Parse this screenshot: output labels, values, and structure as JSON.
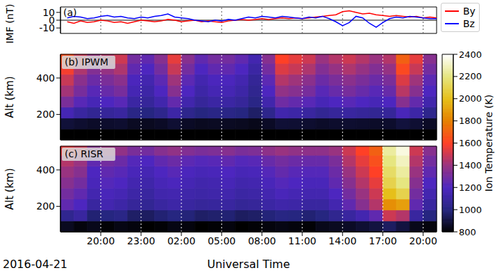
{
  "chart_data": [
    {
      "type": "line",
      "title": "(a)",
      "ylabel": "IMF (nT)",
      "x": [
        17.5,
        18,
        18.5,
        19,
        19.5,
        20,
        20.5,
        21,
        21.5,
        22,
        22.5,
        23,
        23.5,
        24,
        24.5,
        25,
        25.5,
        26,
        26.5,
        27,
        27.5,
        28,
        28.5,
        29,
        29.5,
        30,
        30.5,
        31,
        31.5,
        32,
        32.5,
        33,
        33.5,
        34,
        34.5,
        35,
        35.5,
        36,
        36.5,
        37,
        37.5,
        38,
        38.5,
        39,
        39.5,
        40,
        40.5,
        41,
        41.5,
        42,
        42.5,
        43,
        43.5,
        44,
        44.5,
        45
      ],
      "series": [
        {
          "name": "By",
          "color": "#ff0000",
          "values": [
            -2,
            -4,
            -1,
            -3,
            -2,
            0,
            -1,
            -3,
            -2,
            -4,
            -2,
            0,
            -1,
            -2,
            -1,
            1,
            0,
            -2,
            -1,
            0,
            -2,
            -1,
            -2,
            -3,
            -1,
            0,
            1,
            0,
            1,
            2,
            1,
            2,
            3,
            2,
            3,
            2,
            3,
            4,
            5,
            6,
            7,
            11,
            12,
            10,
            8,
            9,
            7,
            6,
            5,
            6,
            5,
            4,
            5,
            3,
            4,
            3
          ]
        },
        {
          "name": "Bz",
          "color": "#0000ff",
          "values": [
            3,
            5,
            4,
            2,
            3,
            5,
            6,
            4,
            5,
            3,
            2,
            4,
            3,
            5,
            6,
            8,
            4,
            3,
            2,
            0,
            -1,
            -2,
            0,
            -1,
            1,
            0,
            2,
            4,
            3,
            5,
            4,
            3,
            5,
            4,
            3,
            2,
            4,
            3,
            5,
            2,
            -2,
            -7,
            -3,
            5,
            3,
            -4,
            -9,
            -3,
            2,
            4,
            3,
            5,
            4,
            3,
            2,
            2
          ]
        }
      ],
      "xlim": [
        17,
        45
      ],
      "xticks": [
        {
          "value": 20,
          "label": "20:00"
        },
        {
          "value": 23,
          "label": "23:00"
        },
        {
          "value": 26,
          "label": "02:00"
        },
        {
          "value": 29,
          "label": "05:00"
        },
        {
          "value": 32,
          "label": "08:00"
        },
        {
          "value": 35,
          "label": "11:00"
        },
        {
          "value": 38,
          "label": "14:00"
        },
        {
          "value": 41,
          "label": "17:00"
        },
        {
          "value": 44,
          "label": "20:00"
        }
      ],
      "ylim": [
        -17,
        17
      ],
      "yticks": [
        -10,
        0,
        10
      ],
      "grid": true,
      "legend": "right",
      "tick_labels": "y",
      "reference_line": 0
    },
    {
      "type": "heatmap",
      "title": "(b) IPWM",
      "ylabel": "Alt (km)",
      "x_bins": [
        17,
        18,
        19,
        20,
        21,
        22,
        23,
        24,
        25,
        26,
        27,
        28,
        29,
        30,
        31,
        32,
        33,
        34,
        35,
        36,
        37,
        38,
        39,
        40,
        41,
        42,
        43,
        44,
        45
      ],
      "y_bins": [
        60,
        120,
        180,
        240,
        300,
        360,
        420,
        480,
        530
      ],
      "cells": [
        [
          800,
          800,
          800,
          800,
          800,
          800,
          800,
          800,
          800,
          800,
          800,
          800,
          800,
          800,
          800,
          800,
          800,
          800,
          800,
          800,
          800,
          800,
          800,
          800,
          800,
          800,
          800,
          800
        ],
        [
          890,
          875,
          865,
          870,
          875,
          855,
          850,
          860,
          880,
          860,
          850,
          855,
          855,
          850,
          840,
          860,
          885,
          880,
          875,
          865,
          870,
          875,
          870,
          865,
          870,
          895,
          880,
          860
        ],
        [
          1160,
          1100,
          1060,
          1080,
          1100,
          1020,
          1000,
          1040,
          1120,
          1040,
          1000,
          1020,
          1020,
          1000,
          960,
          1040,
          1140,
          1120,
          1100,
          1060,
          1080,
          1100,
          1080,
          1060,
          1080,
          1180,
          1120,
          1040
        ],
        [
          1320,
          1230,
          1170,
          1200,
          1230,
          1110,
          1080,
          1140,
          1260,
          1140,
          1080,
          1110,
          1110,
          1080,
          1020,
          1140,
          1290,
          1260,
          1230,
          1170,
          1200,
          1230,
          1200,
          1170,
          1200,
          1350,
          1260,
          1140
        ],
        [
          1420,
          1310,
          1230,
          1270,
          1310,
          1160,
          1120,
          1200,
          1350,
          1200,
          1120,
          1160,
          1160,
          1120,
          1050,
          1200,
          1380,
          1350,
          1310,
          1230,
          1270,
          1310,
          1270,
          1230,
          1270,
          1460,
          1350,
          1200
        ],
        [
          1490,
          1360,
          1280,
          1320,
          1360,
          1190,
          1150,
          1240,
          1410,
          1240,
          1150,
          1190,
          1190,
          1150,
          1070,
          1240,
          1450,
          1410,
          1360,
          1280,
          1320,
          1360,
          1320,
          1280,
          1320,
          1530,
          1410,
          1240
        ],
        [
          1580,
          1440,
          1340,
          1390,
          1440,
          1250,
          1200,
          1300,
          1490,
          1300,
          1200,
          1250,
          1250,
          1200,
          1110,
          1300,
          1530,
          1490,
          1440,
          1340,
          1390,
          1440,
          1390,
          1340,
          1390,
          1630,
          1490,
          1300
        ],
        [
          1650,
          1500,
          1400,
          1450,
          1500,
          1300,
          1250,
          1350,
          1550,
          1350,
          1250,
          1300,
          1300,
          1250,
          1150,
          1350,
          1600,
          1550,
          1500,
          1400,
          1450,
          1500,
          1450,
          1400,
          1450,
          1700,
          1550,
          1350
        ]
      ],
      "xlim": [
        17,
        45
      ],
      "xticks": [
        {
          "value": 20,
          "label": "20:00"
        },
        {
          "value": 23,
          "label": "23:00"
        },
        {
          "value": 26,
          "label": "02:00"
        },
        {
          "value": 29,
          "label": "05:00"
        },
        {
          "value": 32,
          "label": "08:00"
        },
        {
          "value": 35,
          "label": "11:00"
        },
        {
          "value": 38,
          "label": "14:00"
        },
        {
          "value": 41,
          "label": "17:00"
        },
        {
          "value": 44,
          "label": "20:00"
        }
      ],
      "ylim": [
        60,
        530
      ],
      "yticks": [
        200,
        400
      ],
      "grid": true,
      "tick_labels": "y"
    },
    {
      "type": "heatmap",
      "title": "(c) RISR",
      "ylabel": "Alt (km)",
      "xlabel": "Universal Time",
      "annotation": "2016-04-21",
      "x_bins": [
        17,
        18,
        19,
        20,
        21,
        22,
        23,
        24,
        25,
        26,
        27,
        28,
        29,
        30,
        31,
        32,
        33,
        34,
        35,
        36,
        37,
        38,
        39,
        40,
        41,
        42,
        43,
        44,
        45
      ],
      "y_bins": [
        60,
        120,
        180,
        240,
        300,
        360,
        420,
        480,
        530
      ],
      "cells": [
        [
          850,
          820,
          840,
          810,
          830,
          820,
          800,
          810,
          830,
          820,
          800,
          810,
          820,
          800,
          810,
          820,
          830,
          820,
          810,
          840,
          850,
          860,
          880,
          900,
          950,
          900,
          840,
          820
        ],
        [
          1050,
          1100,
          980,
          1000,
          1020,
          960,
          950,
          980,
          1000,
          990,
          960,
          970,
          980,
          950,
          960,
          990,
          1010,
          1000,
          980,
          1000,
          1050,
          1100,
          1150,
          1250,
          1500,
          1450,
          1100,
          1000
        ],
        [
          1250,
          1200,
          1100,
          1150,
          1120,
          1080,
          1060,
          1100,
          1120,
          1100,
          1080,
          1090,
          1100,
          1070,
          1080,
          1110,
          1130,
          1120,
          1100,
          1100,
          1150,
          1250,
          1350,
          1450,
          1850,
          1900,
          1250,
          1100
        ],
        [
          1300,
          1250,
          1150,
          1180,
          1160,
          1120,
          1100,
          1140,
          1150,
          1130,
          1120,
          1130,
          1140,
          1110,
          1120,
          1150,
          1180,
          1160,
          1150,
          1150,
          1200,
          1300,
          1400,
          1500,
          2000,
          2100,
          1300,
          1150
        ],
        [
          1350,
          1300,
          1180,
          1220,
          1200,
          1150,
          1130,
          1170,
          1190,
          1160,
          1140,
          1150,
          1170,
          1140,
          1150,
          1180,
          1220,
          1200,
          1180,
          1180,
          1250,
          1350,
          1450,
          1550,
          2100,
          2200,
          1350,
          1200
        ],
        [
          1400,
          1350,
          1200,
          1250,
          1230,
          1180,
          1160,
          1200,
          1230,
          1190,
          1170,
          1180,
          1200,
          1170,
          1180,
          1220,
          1260,
          1230,
          1220,
          1220,
          1280,
          1400,
          1500,
          1600,
          2150,
          2250,
          1400,
          1250
        ],
        [
          1450,
          1400,
          1250,
          1300,
          1280,
          1220,
          1200,
          1250,
          1280,
          1240,
          1220,
          1230,
          1250,
          1220,
          1230,
          1270,
          1300,
          1280,
          1270,
          1270,
          1320,
          1450,
          1550,
          1650,
          2200,
          2300,
          1450,
          1300
        ],
        [
          1550,
          1500,
          1350,
          1400,
          1380,
          1320,
          1300,
          1350,
          1380,
          1340,
          1320,
          1330,
          1350,
          1320,
          1330,
          1370,
          1400,
          1380,
          1370,
          1370,
          1400,
          1500,
          1600,
          1700,
          2250,
          2350,
          1500,
          1350
        ]
      ],
      "xlim": [
        17,
        45
      ],
      "xticks": [
        {
          "value": 20,
          "label": "20:00"
        },
        {
          "value": 23,
          "label": "23:00"
        },
        {
          "value": 26,
          "label": "02:00"
        },
        {
          "value": 29,
          "label": "05:00"
        },
        {
          "value": 32,
          "label": "08:00"
        },
        {
          "value": 35,
          "label": "11:00"
        },
        {
          "value": 38,
          "label": "14:00"
        },
        {
          "value": 41,
          "label": "17:00"
        },
        {
          "value": 44,
          "label": "20:00"
        }
      ],
      "ylim": [
        60,
        530
      ],
      "yticks": [
        200,
        400
      ],
      "grid": true
    }
  ],
  "colorbar": {
    "label": "Ion Temperature (K)",
    "range": [
      800,
      2400
    ],
    "ticks": [
      800,
      1000,
      1200,
      1400,
      1600,
      1800,
      2000,
      2200,
      2400
    ]
  }
}
